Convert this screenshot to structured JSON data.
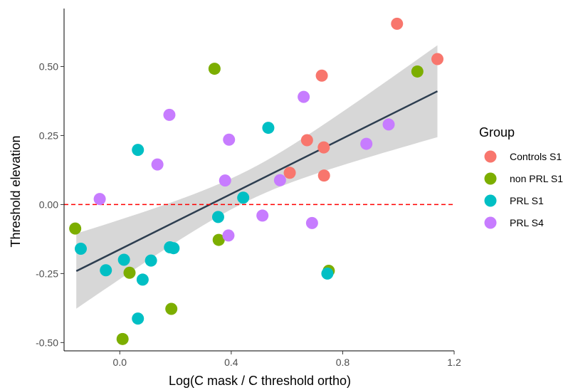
{
  "chart_data": {
    "type": "scatter",
    "xlabel": "Log(C mask / C threshold ortho)",
    "ylabel": "Threshold elevation",
    "xlim": [
      -0.2,
      1.2
    ],
    "ylim": [
      -0.53,
      0.71
    ],
    "x_ticks": [
      0.0,
      0.4,
      0.8,
      1.2
    ],
    "x_tick_labels": [
      "0.0",
      "0.4",
      "0.8",
      "1.2"
    ],
    "y_ticks": [
      -0.5,
      -0.25,
      0.0,
      0.25,
      0.5
    ],
    "y_tick_labels": [
      "-0.50",
      "-0.25",
      "0.00",
      "0.25",
      "0.50"
    ],
    "grid": false,
    "reference_line": {
      "y": 0.0,
      "color": "#ff0000",
      "style": "dashed"
    },
    "regression": {
      "x_range": [
        -0.156,
        1.14
      ],
      "intercept": -0.1626,
      "slope": 0.5027,
      "ci_lower": [
        -0.372,
        0.243
      ],
      "ci_upper": [
        -0.105,
        0.577
      ],
      "ci_mid": [
        0.45,
        0.45
      ],
      "line_color": "#2d3e50",
      "band_color": "#d3d3d3"
    },
    "legend": {
      "title": "Group",
      "position": "right",
      "entries": [
        {
          "label": "Controls S1",
          "color": "#f8766d"
        },
        {
          "label": "non PRL S1",
          "color": "#7cae00"
        },
        {
          "label": "PRL S1",
          "color": "#00bfc4"
        },
        {
          "label": "PRL S4",
          "color": "#c77cff"
        }
      ]
    },
    "series": [
      {
        "name": "Controls S1",
        "color": "#f8766d",
        "points": [
          [
            0.995,
            0.655
          ],
          [
            1.14,
            0.527
          ],
          [
            0.725,
            0.467
          ],
          [
            0.672,
            0.233
          ],
          [
            0.732,
            0.207
          ],
          [
            0.61,
            0.115
          ],
          [
            0.733,
            0.105
          ]
        ]
      },
      {
        "name": "non PRL S1",
        "color": "#7cae00",
        "points": [
          [
            0.34,
            0.492
          ],
          [
            1.068,
            0.482
          ],
          [
            -0.16,
            -0.087
          ],
          [
            0.355,
            -0.128
          ],
          [
            0.035,
            -0.247
          ],
          [
            0.75,
            -0.24
          ],
          [
            0.185,
            -0.378
          ],
          [
            0.01,
            -0.487
          ]
        ]
      },
      {
        "name": "PRL S1",
        "color": "#00bfc4",
        "points": [
          [
            0.533,
            0.278
          ],
          [
            0.065,
            0.198
          ],
          [
            0.443,
            0.025
          ],
          [
            0.353,
            -0.045
          ],
          [
            -0.14,
            -0.16
          ],
          [
            0.18,
            -0.155
          ],
          [
            0.193,
            -0.158
          ],
          [
            0.015,
            -0.2
          ],
          [
            0.112,
            -0.203
          ],
          [
            -0.05,
            -0.238
          ],
          [
            0.082,
            -0.272
          ],
          [
            0.745,
            -0.25
          ],
          [
            0.065,
            -0.413
          ]
        ]
      },
      {
        "name": "PRL S4",
        "color": "#c77cff",
        "points": [
          [
            0.178,
            0.325
          ],
          [
            0.66,
            0.39
          ],
          [
            0.392,
            0.235
          ],
          [
            0.135,
            0.145
          ],
          [
            0.965,
            0.29
          ],
          [
            0.885,
            0.22
          ],
          [
            0.378,
            0.087
          ],
          [
            0.575,
            0.088
          ],
          [
            -0.072,
            0.02
          ],
          [
            0.512,
            -0.04
          ],
          [
            0.39,
            -0.112
          ],
          [
            0.69,
            -0.067
          ]
        ]
      }
    ]
  }
}
